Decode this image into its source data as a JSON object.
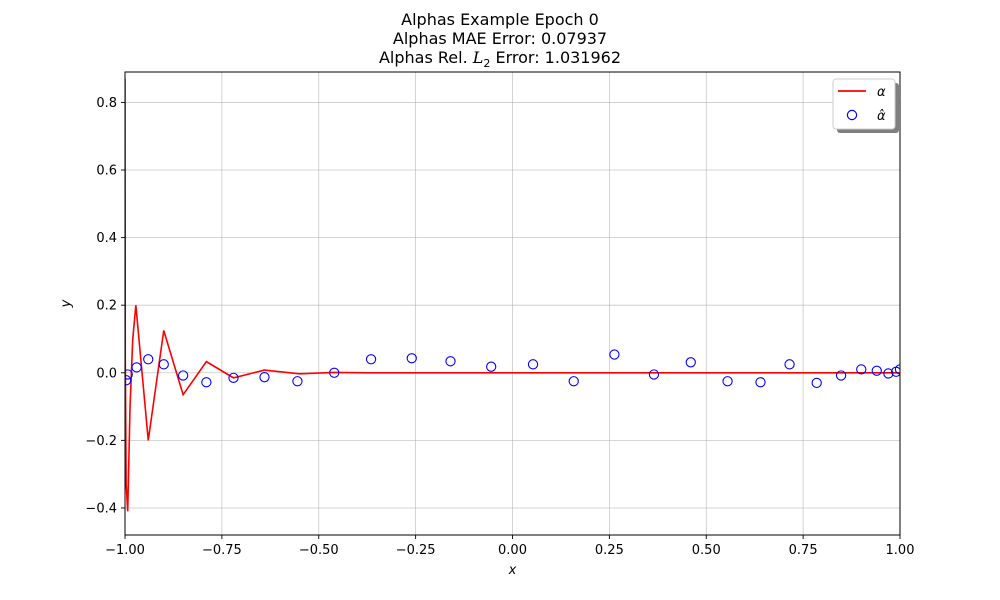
{
  "chart_data": {
    "type": "line",
    "title_lines": [
      "Alphas Example Epoch 0",
      "Alphas MAE Error: 0.07937"
    ],
    "title_line3": {
      "prefix": "Alphas Rel. ",
      "sym": "L",
      "sub": "2",
      "suffix": " Error: 1.031962"
    },
    "xlabel": "x",
    "ylabel": "y",
    "xlim": [
      -1.0,
      1.0
    ],
    "ylim": [
      -0.48,
      0.89
    ],
    "xticks": [
      -1.0,
      -0.75,
      -0.5,
      -0.25,
      0.0,
      0.25,
      0.5,
      0.75,
      1.0
    ],
    "xtick_labels": [
      "−1.00",
      "−0.75",
      "−0.50",
      "−0.25",
      "0.00",
      "0.25",
      "0.50",
      "0.75",
      "1.00"
    ],
    "yticks": [
      -0.4,
      -0.2,
      0.0,
      0.2,
      0.4,
      0.6,
      0.8
    ],
    "ytick_labels": [
      "−0.4",
      "−0.2",
      "0.0",
      "0.2",
      "0.4",
      "0.6",
      "0.8"
    ],
    "grid": true,
    "legend_position": "top-right",
    "series": [
      {
        "name": "α",
        "kind": "line",
        "color": "#ff0000",
        "x": [
          -1.0,
          -0.9993,
          -0.997,
          -0.993,
          -0.987,
          -0.98,
          -0.972,
          -0.94,
          -0.9,
          -0.85,
          -0.79,
          -0.72,
          -0.64,
          -0.55,
          -0.46,
          -0.37,
          -0.26,
          -0.16,
          -0.05,
          0.05,
          0.16,
          0.26,
          0.37,
          0.46,
          0.55,
          0.64,
          0.72,
          0.79,
          0.85,
          0.9,
          0.94,
          0.97,
          0.99,
          1.0
        ],
        "y": [
          0.87,
          0.05,
          -0.33,
          -0.41,
          -0.1,
          0.1,
          0.2,
          -0.2,
          0.125,
          -0.065,
          0.033,
          -0.015,
          0.008,
          -0.003,
          0.001,
          0.0,
          0.0,
          0.0,
          0.0,
          0.0,
          0.0,
          0.0,
          0.0,
          0.0,
          0.0,
          0.0,
          0.0,
          0.0,
          0.0,
          0.0,
          0.0,
          0.0,
          0.0,
          0.0
        ]
      },
      {
        "name": "α̂",
        "kind": "scatter",
        "color": "#0000ff",
        "x": [
          -0.997,
          -0.993,
          -0.97,
          -0.94,
          -0.9,
          -0.85,
          -0.79,
          -0.72,
          -0.64,
          -0.555,
          -0.46,
          -0.365,
          -0.26,
          -0.16,
          -0.055,
          0.053,
          0.158,
          0.263,
          0.365,
          0.46,
          0.555,
          0.64,
          0.715,
          0.785,
          0.848,
          0.9,
          0.94,
          0.97,
          0.99,
          1.0
        ],
        "y": [
          -0.022,
          -0.005,
          0.016,
          0.04,
          0.025,
          -0.008,
          -0.028,
          -0.015,
          -0.013,
          -0.025,
          0.0,
          0.04,
          0.043,
          0.034,
          0.018,
          0.025,
          -0.025,
          0.054,
          -0.005,
          0.031,
          -0.025,
          -0.028,
          0.025,
          -0.03,
          -0.008,
          0.01,
          0.006,
          -0.002,
          0.003,
          0.01
        ]
      }
    ]
  }
}
